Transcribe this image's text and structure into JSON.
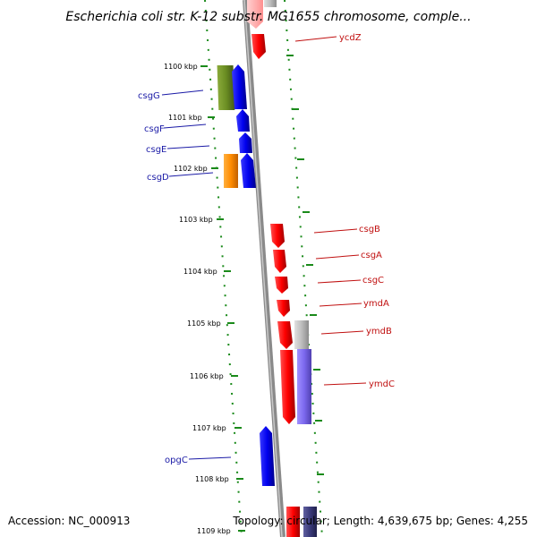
{
  "title": "Escherichia coli str. K-12 substr. MG1655 chromosome, comple...",
  "footer": {
    "accession": "Accession: NC_000913",
    "summary": "Topology: circular; Length: 4,639,675 bp; Genes: 4,255"
  },
  "ticks": [
    "1100 kbp",
    "1101 kbp",
    "1102 kbp",
    "1103 kbp",
    "1104 kbp",
    "1105 kbp",
    "1106 kbp",
    "1107 kbp",
    "1108 kbp",
    "1109 kbp"
  ],
  "genes": {
    "reverse_strand": [
      "csgG",
      "csgF",
      "csgE",
      "csgD",
      "opgC"
    ],
    "forward_strand": [
      "ycdZ",
      "csgB",
      "csgA",
      "csgC",
      "ymdA",
      "ymdB",
      "ymdC"
    ]
  },
  "colors": {
    "forward_cds": "#ff1010",
    "reverse_cds": "#0000ee",
    "olive_feature": "#6b8e23",
    "orange_feature": "#ff8c00",
    "gray_feature": "#bdbdbd",
    "purple_feature": "#7b68ee",
    "navy_feature": "#3a3a7a",
    "backbone": "#8a8a8a",
    "tick_marks": "#1a8a1a",
    "left_labels": "#1a1aa6",
    "right_labels": "#c01010"
  }
}
